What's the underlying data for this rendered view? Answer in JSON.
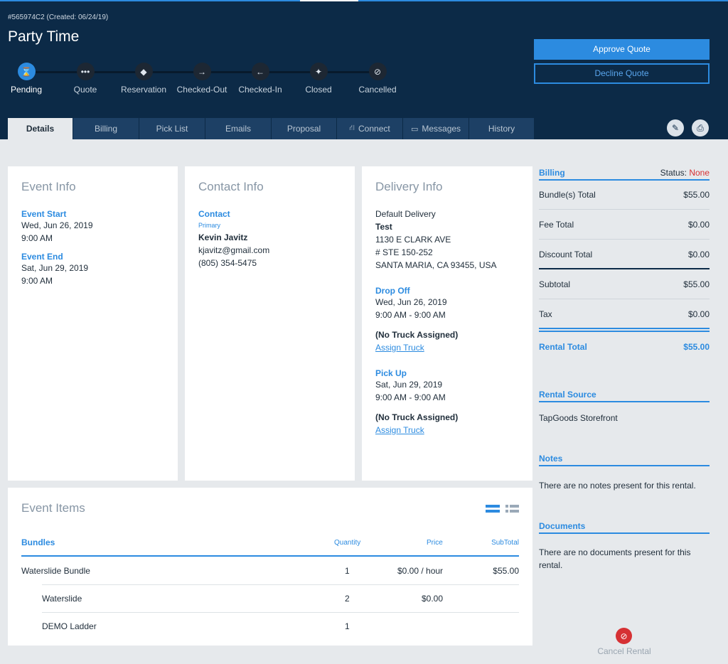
{
  "header": {
    "rental_id": "#565974C2 (Created: 06/24/19)",
    "title": "Party Time",
    "approve_label": "Approve Quote",
    "decline_label": "Decline Quote"
  },
  "progress": {
    "current": "Pending",
    "steps": [
      {
        "label": "Pending",
        "icon": "hourglass-icon"
      },
      {
        "label": "Quote",
        "icon": "dots-icon"
      },
      {
        "label": "Reservation",
        "icon": "tag-icon"
      },
      {
        "label": "Checked-Out",
        "icon": "arrow-right-icon"
      },
      {
        "label": "Checked-In",
        "icon": "arrow-left-icon"
      },
      {
        "label": "Closed",
        "icon": "closed-icon"
      },
      {
        "label": "Cancelled",
        "icon": "ban-icon"
      }
    ]
  },
  "tabs": [
    {
      "label": "Details",
      "active": true
    },
    {
      "label": "Billing"
    },
    {
      "label": "Pick List"
    },
    {
      "label": "Emails"
    },
    {
      "label": "Proposal"
    },
    {
      "label": "Connect",
      "icon": "network-icon"
    },
    {
      "label": "Messages",
      "icon": "inbox-icon"
    },
    {
      "label": "History"
    }
  ],
  "event_info": {
    "title": "Event Info",
    "start_label": "Event Start",
    "start_date": "Wed, Jun 26, 2019",
    "start_time": "9:00 AM",
    "end_label": "Event End",
    "end_date": "Sat, Jun 29, 2019",
    "end_time": "9:00 AM"
  },
  "contact_info": {
    "title": "Contact Info",
    "contact_label": "Contact",
    "primary_label": "Primary",
    "name": "Kevin Javitz",
    "email": "kjavitz@gmail.com",
    "phone": "(805) 354-5475"
  },
  "delivery_info": {
    "title": "Delivery Info",
    "type": "Default Delivery",
    "name": "Test",
    "address1": "1130 E CLARK AVE",
    "address2": "# STE 150-252",
    "address3": "SANTA MARIA, CA 93455, USA",
    "dropoff_label": "Drop Off",
    "dropoff_date": "Wed, Jun 26, 2019",
    "dropoff_time": "9:00 AM - 9:00 AM",
    "dropoff_truck": "(No Truck Assigned)",
    "dropoff_assign": "Assign Truck",
    "pickup_label": "Pick Up",
    "pickup_date": "Sat, Jun 29, 2019",
    "pickup_time": "9:00 AM - 9:00 AM",
    "pickup_truck": "(No Truck Assigned)",
    "pickup_assign": "Assign Truck"
  },
  "event_items": {
    "title": "Event Items",
    "columns": {
      "name": "Bundles",
      "quantity": "Quantity",
      "price": "Price",
      "subtotal": "SubTotal"
    },
    "rows": [
      {
        "name": "Waterslide Bundle",
        "quantity": "1",
        "price": "$0.00 / hour",
        "subtotal": "$55.00"
      },
      {
        "name": "Waterslide",
        "quantity": "2",
        "price": "$0.00",
        "subtotal": ""
      },
      {
        "name": "DEMO Ladder",
        "quantity": "1",
        "price": "",
        "subtotal": ""
      }
    ]
  },
  "billing": {
    "title": "Billing",
    "status_label": "Status:",
    "status_value": "None",
    "status_color": "#d63134",
    "rows": [
      {
        "label": "Bundle(s) Total",
        "value": "$55.00"
      },
      {
        "label": "Fee Total",
        "value": "$0.00"
      },
      {
        "label": "Discount Total",
        "value": "$0.00"
      },
      {
        "label": "Subtotal",
        "value": "$55.00"
      },
      {
        "label": "Tax",
        "value": "$0.00"
      }
    ],
    "total_label": "Rental Total",
    "total_value": "$55.00"
  },
  "rental_source": {
    "title": "Rental Source",
    "value": "TapGoods Storefront"
  },
  "notes": {
    "title": "Notes",
    "value": "There are no notes present for this rental."
  },
  "documents": {
    "title": "Documents",
    "value": "There are no documents present for this rental."
  },
  "cancel": {
    "label": "Cancel Rental"
  },
  "colors": {
    "header_bg": "#0c2a47",
    "accent": "#2c8be0",
    "danger": "#d63134"
  }
}
